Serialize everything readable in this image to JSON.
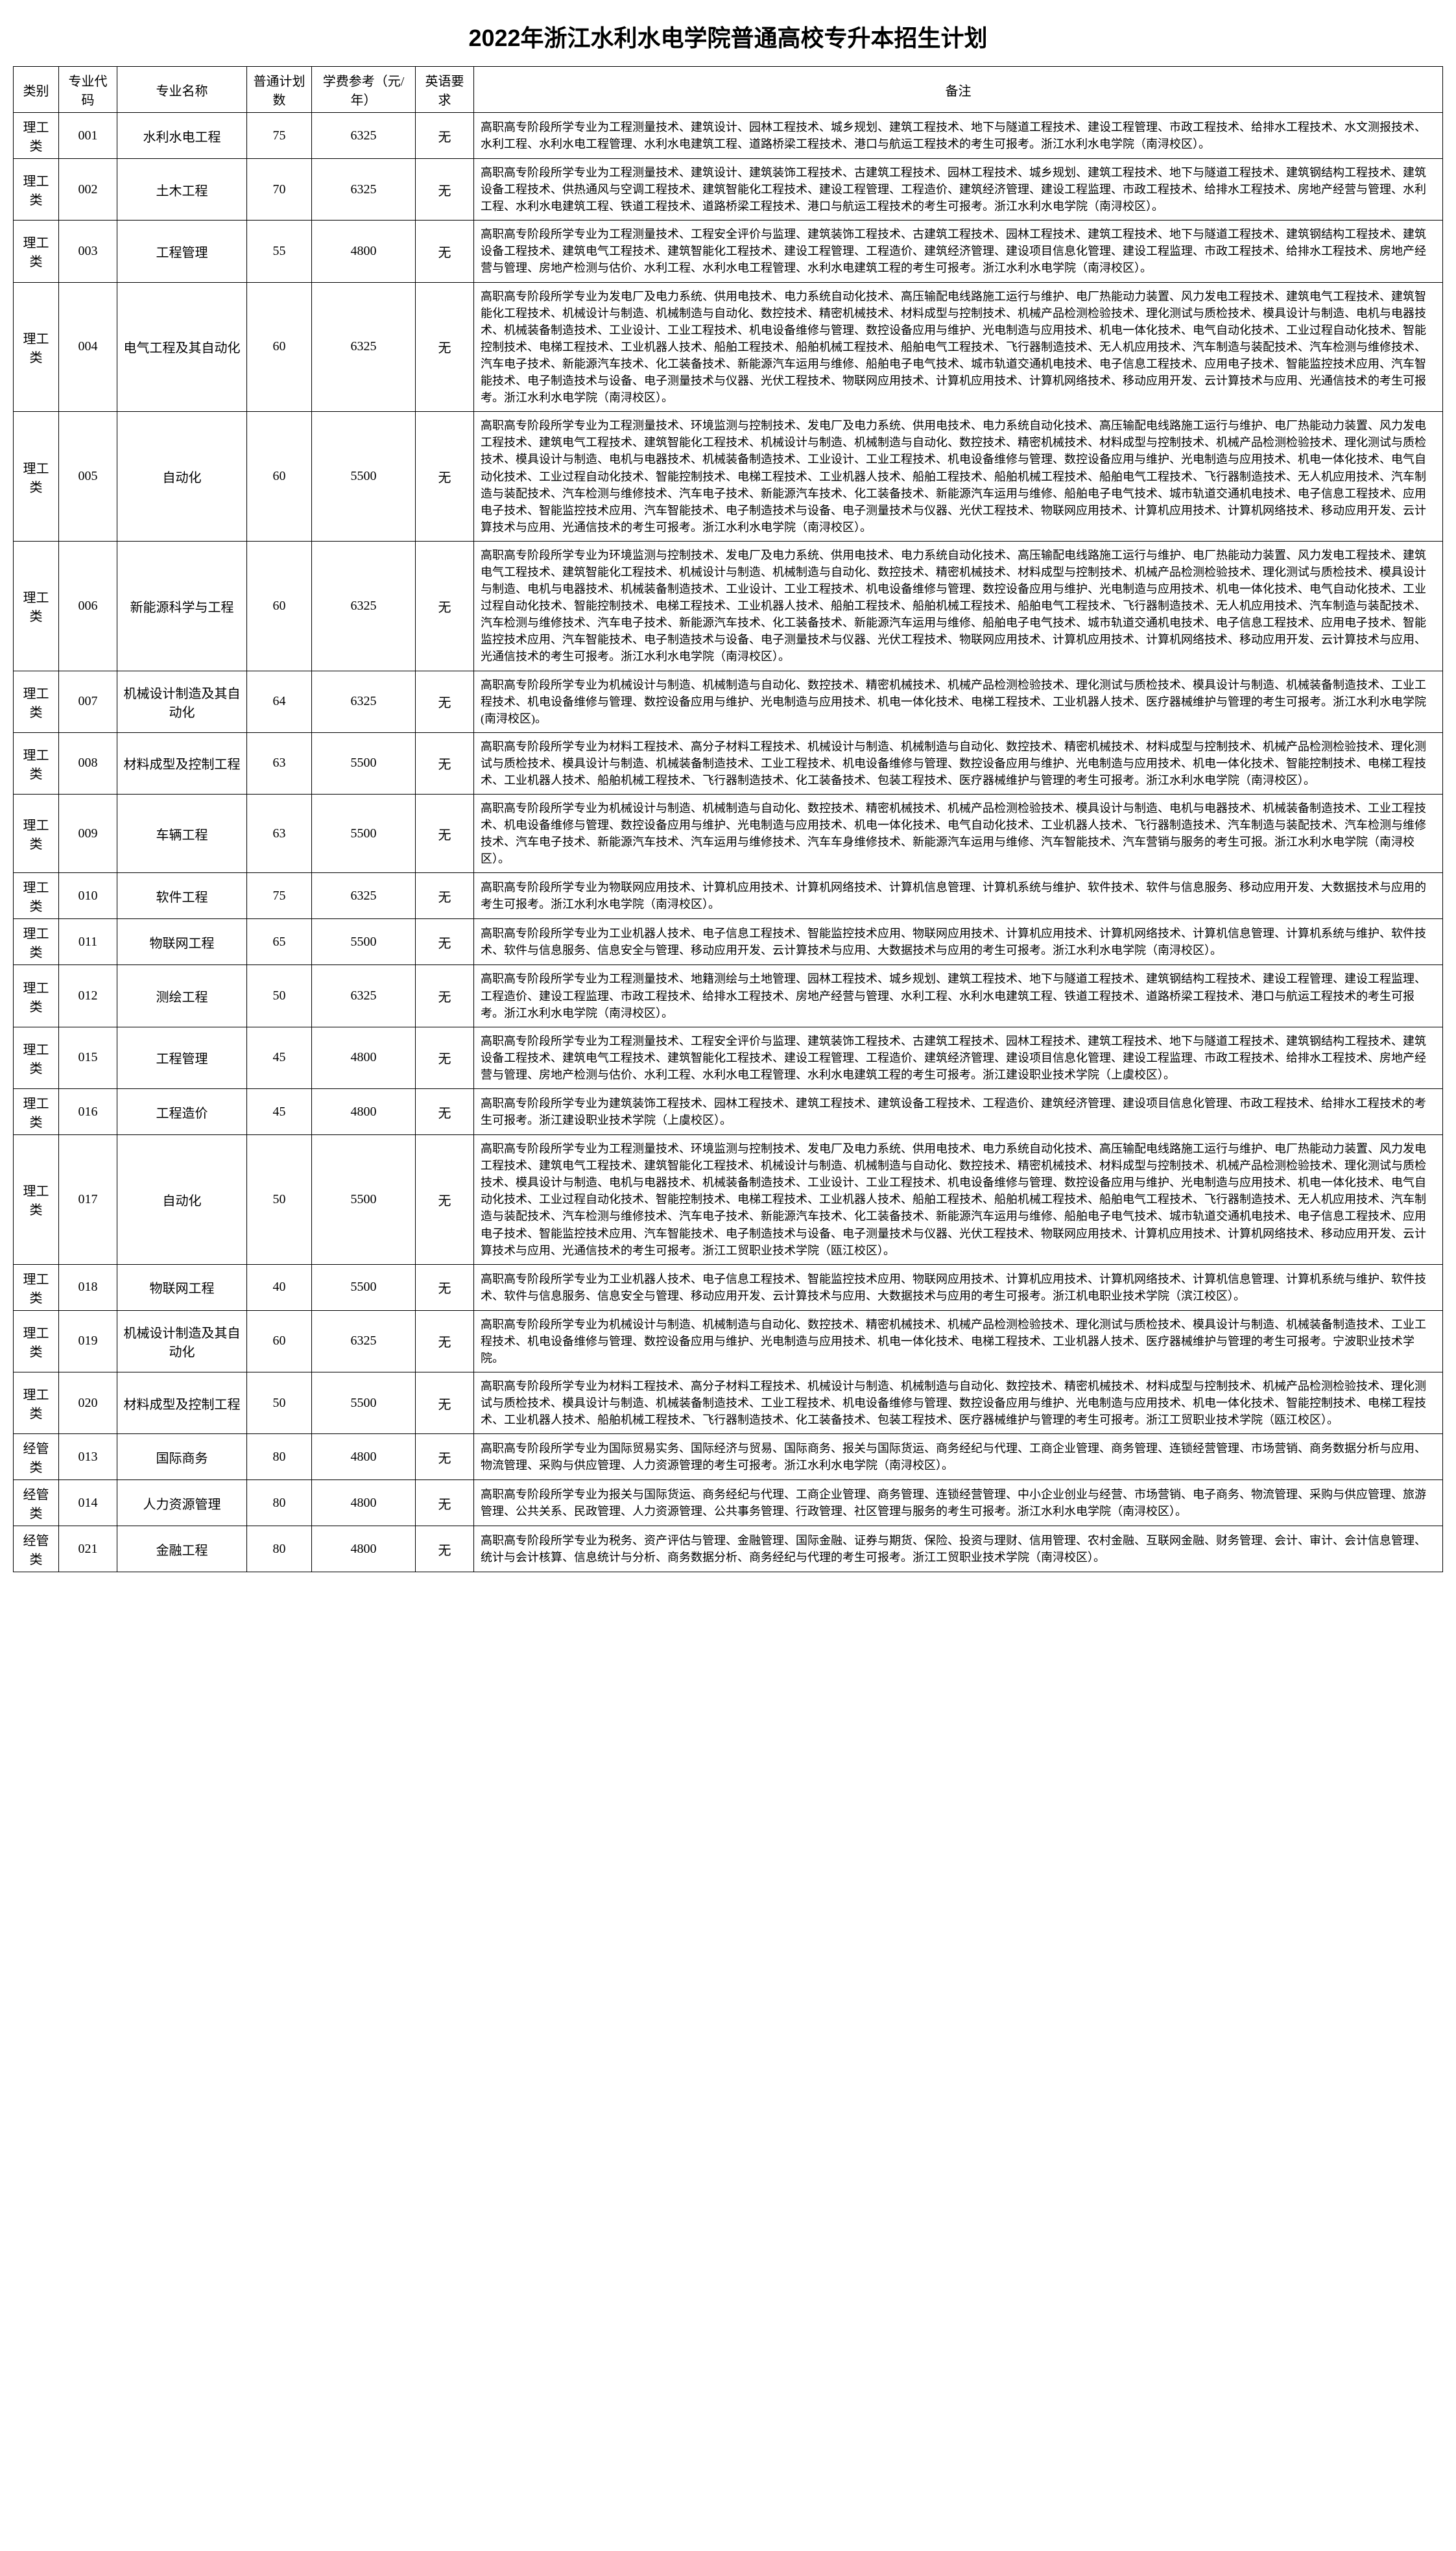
{
  "title": "2022年浙江水利水电学院普通高校专升本招生计划",
  "columns": [
    "类别",
    "专业代码",
    "专业名称",
    "普通计划数",
    "学费参考（元/年）",
    "英语要求",
    "备注"
  ],
  "rows": [
    {
      "cat": "理工类",
      "code": "001",
      "name": "水利水电工程",
      "plan": "75",
      "fee": "6325",
      "eng": "无",
      "remark": "高职高专阶段所学专业为工程测量技术、建筑设计、园林工程技术、城乡规划、建筑工程技术、地下与隧道工程技术、建设工程管理、市政工程技术、给排水工程技术、水文测报技术、水利工程、水利水电工程管理、水利水电建筑工程、道路桥梁工程技术、港口与航运工程技术的考生可报考。浙江水利水电学院（南浔校区）。"
    },
    {
      "cat": "理工类",
      "code": "002",
      "name": "土木工程",
      "plan": "70",
      "fee": "6325",
      "eng": "无",
      "remark": "高职高专阶段所学专业为工程测量技术、建筑设计、建筑装饰工程技术、古建筑工程技术、园林工程技术、城乡规划、建筑工程技术、地下与隧道工程技术、建筑钢结构工程技术、建筑设备工程技术、供热通风与空调工程技术、建筑智能化工程技术、建设工程管理、工程造价、建筑经济管理、建设工程监理、市政工程技术、给排水工程技术、房地产经营与管理、水利工程、水利水电建筑工程、铁道工程技术、道路桥梁工程技术、港口与航运工程技术的考生可报考。浙江水利水电学院（南浔校区）。"
    },
    {
      "cat": "理工类",
      "code": "003",
      "name": "工程管理",
      "plan": "55",
      "fee": "4800",
      "eng": "无",
      "remark": "高职高专阶段所学专业为工程测量技术、工程安全评价与监理、建筑装饰工程技术、古建筑工程技术、园林工程技术、建筑工程技术、地下与隧道工程技术、建筑钢结构工程技术、建筑设备工程技术、建筑电气工程技术、建筑智能化工程技术、建设工程管理、工程造价、建筑经济管理、建设项目信息化管理、建设工程监理、市政工程技术、给排水工程技术、房地产经营与管理、房地产检测与估价、水利工程、水利水电工程管理、水利水电建筑工程的考生可报考。浙江水利水电学院（南浔校区）。"
    },
    {
      "cat": "理工类",
      "code": "004",
      "name": "电气工程及其自动化",
      "plan": "60",
      "fee": "6325",
      "eng": "无",
      "remark": "高职高专阶段所学专业为发电厂及电力系统、供用电技术、电力系统自动化技术、高压输配电线路施工运行与维护、电厂热能动力装置、风力发电工程技术、建筑电气工程技术、建筑智能化工程技术、机械设计与制造、机械制造与自动化、数控技术、精密机械技术、材料成型与控制技术、机械产品检测检验技术、理化测试与质检技术、模具设计与制造、电机与电器技术、机械装备制造技术、工业设计、工业工程技术、机电设备维修与管理、数控设备应用与维护、光电制造与应用技术、机电一体化技术、电气自动化技术、工业过程自动化技术、智能控制技术、电梯工程技术、工业机器人技术、船舶工程技术、船舶机械工程技术、船舶电气工程技术、飞行器制造技术、无人机应用技术、汽车制造与装配技术、汽车检测与维修技术、汽车电子技术、新能源汽车技术、化工装备技术、新能源汽车运用与维修、船舶电子电气技术、城市轨道交通机电技术、电子信息工程技术、应用电子技术、智能监控技术应用、汽车智能技术、电子制造技术与设备、电子测量技术与仪器、光伏工程技术、物联网应用技术、计算机应用技术、计算机网络技术、移动应用开发、云计算技术与应用、光通信技术的考生可报考。浙江水利水电学院（南浔校区）。"
    },
    {
      "cat": "理工类",
      "code": "005",
      "name": "自动化",
      "plan": "60",
      "fee": "5500",
      "eng": "无",
      "remark": "高职高专阶段所学专业为工程测量技术、环境监测与控制技术、发电厂及电力系统、供用电技术、电力系统自动化技术、高压输配电线路施工运行与维护、电厂热能动力装置、风力发电工程技术、建筑电气工程技术、建筑智能化工程技术、机械设计与制造、机械制造与自动化、数控技术、精密机械技术、材料成型与控制技术、机械产品检测检验技术、理化测试与质检技术、模具设计与制造、电机与电器技术、机械装备制造技术、工业设计、工业工程技术、机电设备维修与管理、数控设备应用与维护、光电制造与应用技术、机电一体化技术、电气自动化技术、工业过程自动化技术、智能控制技术、电梯工程技术、工业机器人技术、船舶工程技术、船舶机械工程技术、船舶电气工程技术、飞行器制造技术、无人机应用技术、汽车制造与装配技术、汽车检测与维修技术、汽车电子技术、新能源汽车技术、化工装备技术、新能源汽车运用与维修、船舶电子电气技术、城市轨道交通机电技术、电子信息工程技术、应用电子技术、智能监控技术应用、汽车智能技术、电子制造技术与设备、电子测量技术与仪器、光伏工程技术、物联网应用技术、计算机应用技术、计算机网络技术、移动应用开发、云计算技术与应用、光通信技术的考生可报考。浙江水利水电学院（南浔校区）。"
    },
    {
      "cat": "理工类",
      "code": "006",
      "name": "新能源科学与工程",
      "plan": "60",
      "fee": "6325",
      "eng": "无",
      "remark": "高职高专阶段所学专业为环境监测与控制技术、发电厂及电力系统、供用电技术、电力系统自动化技术、高压输配电线路施工运行与维护、电厂热能动力装置、风力发电工程技术、建筑电气工程技术、建筑智能化工程技术、机械设计与制造、机械制造与自动化、数控技术、精密机械技术、材料成型与控制技术、机械产品检测检验技术、理化测试与质检技术、模具设计与制造、电机与电器技术、机械装备制造技术、工业设计、工业工程技术、机电设备维修与管理、数控设备应用与维护、光电制造与应用技术、机电一体化技术、电气自动化技术、工业过程自动化技术、智能控制技术、电梯工程技术、工业机器人技术、船舶工程技术、船舶机械工程技术、船舶电气工程技术、飞行器制造技术、无人机应用技术、汽车制造与装配技术、汽车检测与维修技术、汽车电子技术、新能源汽车技术、化工装备技术、新能源汽车运用与维修、船舶电子电气技术、城市轨道交通机电技术、电子信息工程技术、应用电子技术、智能监控技术应用、汽车智能技术、电子制造技术与设备、电子测量技术与仪器、光伏工程技术、物联网应用技术、计算机应用技术、计算机网络技术、移动应用开发、云计算技术与应用、光通信技术的考生可报考。浙江水利水电学院（南浔校区）。"
    },
    {
      "cat": "理工类",
      "code": "007",
      "name": "机械设计制造及其自动化",
      "plan": "64",
      "fee": "6325",
      "eng": "无",
      "remark": "高职高专阶段所学专业为机械设计与制造、机械制造与自动化、数控技术、精密机械技术、机械产品检测检验技术、理化测试与质检技术、模具设计与制造、机械装备制造技术、工业工程技术、机电设备维修与管理、数控设备应用与维护、光电制造与应用技术、机电一体化技术、电梯工程技术、工业机器人技术、医疗器械维护与管理的考生可报考。浙江水利水电学院(南浔校区)。"
    },
    {
      "cat": "理工类",
      "code": "008",
      "name": "材料成型及控制工程",
      "plan": "63",
      "fee": "5500",
      "eng": "无",
      "remark": "高职高专阶段所学专业为材料工程技术、高分子材料工程技术、机械设计与制造、机械制造与自动化、数控技术、精密机械技术、材料成型与控制技术、机械产品检测检验技术、理化测试与质检技术、模具设计与制造、机械装备制造技术、工业工程技术、机电设备维修与管理、数控设备应用与维护、光电制造与应用技术、机电一体化技术、智能控制技术、电梯工程技术、工业机器人技术、船舶机械工程技术、飞行器制造技术、化工装备技术、包装工程技术、医疗器械维护与管理的考生可报考。浙江水利水电学院（南浔校区）。"
    },
    {
      "cat": "理工类",
      "code": "009",
      "name": "车辆工程",
      "plan": "63",
      "fee": "5500",
      "eng": "无",
      "remark": "高职高专阶段所学专业为机械设计与制造、机械制造与自动化、数控技术、精密机械技术、机械产品检测检验技术、模具设计与制造、电机与电器技术、机械装备制造技术、工业工程技术、机电设备维修与管理、数控设备应用与维护、光电制造与应用技术、机电一体化技术、电气自动化技术、工业机器人技术、飞行器制造技术、汽车制造与装配技术、汽车检测与维修技术、汽车电子技术、新能源汽车技术、汽车运用与维修技术、汽车车身维修技术、新能源汽车运用与维修、汽车智能技术、汽车营销与服务的考生可报。浙江水利水电学院（南浔校区）。"
    },
    {
      "cat": "理工类",
      "code": "010",
      "name": "软件工程",
      "plan": "75",
      "fee": "6325",
      "eng": "无",
      "remark": "高职高专阶段所学专业为物联网应用技术、计算机应用技术、计算机网络技术、计算机信息管理、计算机系统与维护、软件技术、软件与信息服务、移动应用开发、大数据技术与应用的考生可报考。浙江水利水电学院（南浔校区）。"
    },
    {
      "cat": "理工类",
      "code": "011",
      "name": "物联网工程",
      "plan": "65",
      "fee": "5500",
      "eng": "无",
      "remark": "高职高专阶段所学专业为工业机器人技术、电子信息工程技术、智能监控技术应用、物联网应用技术、计算机应用技术、计算机网络技术、计算机信息管理、计算机系统与维护、软件技术、软件与信息服务、信息安全与管理、移动应用开发、云计算技术与应用、大数据技术与应用的考生可报考。浙江水利水电学院（南浔校区）。"
    },
    {
      "cat": "理工类",
      "code": "012",
      "name": "测绘工程",
      "plan": "50",
      "fee": "6325",
      "eng": "无",
      "remark": "高职高专阶段所学专业为工程测量技术、地籍测绘与土地管理、园林工程技术、城乡规划、建筑工程技术、地下与隧道工程技术、建筑钢结构工程技术、建设工程管理、建设工程监理、工程造价、建设工程监理、市政工程技术、给排水工程技术、房地产经营与管理、水利工程、水利水电建筑工程、铁道工程技术、道路桥梁工程技术、港口与航运工程技术的考生可报考。浙江水利水电学院（南浔校区）。"
    },
    {
      "cat": "理工类",
      "code": "015",
      "name": "工程管理",
      "plan": "45",
      "fee": "4800",
      "eng": "无",
      "remark": "高职高专阶段所学专业为工程测量技术、工程安全评价与监理、建筑装饰工程技术、古建筑工程技术、园林工程技术、建筑工程技术、地下与隧道工程技术、建筑钢结构工程技术、建筑设备工程技术、建筑电气工程技术、建筑智能化工程技术、建设工程管理、工程造价、建筑经济管理、建设项目信息化管理、建设工程监理、市政工程技术、给排水工程技术、房地产经营与管理、房地产检测与估价、水利工程、水利水电工程管理、水利水电建筑工程的考生可报考。浙江建设职业技术学院（上虞校区）。"
    },
    {
      "cat": "理工类",
      "code": "016",
      "name": "工程造价",
      "plan": "45",
      "fee": "4800",
      "eng": "无",
      "remark": "高职高专阶段所学专业为建筑装饰工程技术、园林工程技术、建筑工程技术、建筑设备工程技术、工程造价、建筑经济管理、建设项目信息化管理、市政工程技术、给排水工程技术的考生可报考。浙江建设职业技术学院（上虞校区）。"
    },
    {
      "cat": "理工类",
      "code": "017",
      "name": "自动化",
      "plan": "50",
      "fee": "5500",
      "eng": "无",
      "remark": "高职高专阶段所学专业为工程测量技术、环境监测与控制技术、发电厂及电力系统、供用电技术、电力系统自动化技术、高压输配电线路施工运行与维护、电厂热能动力装置、风力发电工程技术、建筑电气工程技术、建筑智能化工程技术、机械设计与制造、机械制造与自动化、数控技术、精密机械技术、材料成型与控制技术、机械产品检测检验技术、理化测试与质检技术、模具设计与制造、电机与电器技术、机械装备制造技术、工业设计、工业工程技术、机电设备维修与管理、数控设备应用与维护、光电制造与应用技术、机电一体化技术、电气自动化技术、工业过程自动化技术、智能控制技术、电梯工程技术、工业机器人技术、船舶工程技术、船舶机械工程技术、船舶电气工程技术、飞行器制造技术、无人机应用技术、汽车制造与装配技术、汽车检测与维修技术、汽车电子技术、新能源汽车技术、化工装备技术、新能源汽车运用与维修、船舶电子电气技术、城市轨道交通机电技术、电子信息工程技术、应用电子技术、智能监控技术应用、汽车智能技术、电子制造技术与设备、电子测量技术与仪器、光伏工程技术、物联网应用技术、计算机应用技术、计算机网络技术、移动应用开发、云计算技术与应用、光通信技术的考生可报考。浙江工贸职业技术学院（瓯江校区）。"
    },
    {
      "cat": "理工类",
      "code": "018",
      "name": "物联网工程",
      "plan": "40",
      "fee": "5500",
      "eng": "无",
      "remark": "高职高专阶段所学专业为工业机器人技术、电子信息工程技术、智能监控技术应用、物联网应用技术、计算机应用技术、计算机网络技术、计算机信息管理、计算机系统与维护、软件技术、软件与信息服务、信息安全与管理、移动应用开发、云计算技术与应用、大数据技术与应用的考生可报考。浙江机电职业技术学院（滨江校区）。"
    },
    {
      "cat": "理工类",
      "code": "019",
      "name": "机械设计制造及其自动化",
      "plan": "60",
      "fee": "6325",
      "eng": "无",
      "remark": "高职高专阶段所学专业为机械设计与制造、机械制造与自动化、数控技术、精密机械技术、机械产品检测检验技术、理化测试与质检技术、模具设计与制造、机械装备制造技术、工业工程技术、机电设备维修与管理、数控设备应用与维护、光电制造与应用技术、机电一体化技术、电梯工程技术、工业机器人技术、医疗器械维护与管理的考生可报考。宁波职业技术学院。"
    },
    {
      "cat": "理工类",
      "code": "020",
      "name": "材料成型及控制工程",
      "plan": "50",
      "fee": "5500",
      "eng": "无",
      "remark": "高职高专阶段所学专业为材料工程技术、高分子材料工程技术、机械设计与制造、机械制造与自动化、数控技术、精密机械技术、材料成型与控制技术、机械产品检测检验技术、理化测试与质检技术、模具设计与制造、机械装备制造技术、工业工程技术、机电设备维修与管理、数控设备应用与维护、光电制造与应用技术、机电一体化技术、智能控制技术、电梯工程技术、工业机器人技术、船舶机械工程技术、飞行器制造技术、化工装备技术、包装工程技术、医疗器械维护与管理的考生可报考。浙江工贸职业技术学院（瓯江校区）。"
    },
    {
      "cat": "经管类",
      "code": "013",
      "name": "国际商务",
      "plan": "80",
      "fee": "4800",
      "eng": "无",
      "remark": "高职高专阶段所学专业为国际贸易实务、国际经济与贸易、国际商务、报关与国际货运、商务经纪与代理、工商企业管理、商务管理、连锁经营管理、市场营销、商务数据分析与应用、物流管理、采购与供应管理、人力资源管理的考生可报考。浙江水利水电学院（南浔校区）。"
    },
    {
      "cat": "经管类",
      "code": "014",
      "name": "人力资源管理",
      "plan": "80",
      "fee": "4800",
      "eng": "无",
      "remark": "高职高专阶段所学专业为报关与国际货运、商务经纪与代理、工商企业管理、商务管理、连锁经营管理、中小企业创业与经营、市场营销、电子商务、物流管理、采购与供应管理、旅游管理、公共关系、民政管理、人力资源管理、公共事务管理、行政管理、社区管理与服务的考生可报考。浙江水利水电学院（南浔校区）。"
    },
    {
      "cat": "经管类",
      "code": "021",
      "name": "金融工程",
      "plan": "80",
      "fee": "4800",
      "eng": "无",
      "remark": "高职高专阶段所学专业为税务、资产评估与管理、金融管理、国际金融、证券与期货、保险、投资与理财、信用管理、农村金融、互联网金融、财务管理、会计、审计、会计信息管理、统计与会计核算、信息统计与分析、商务数据分析、商务经纪与代理的考生可报考。浙江工贸职业技术学院（南浔校区）。"
    }
  ]
}
